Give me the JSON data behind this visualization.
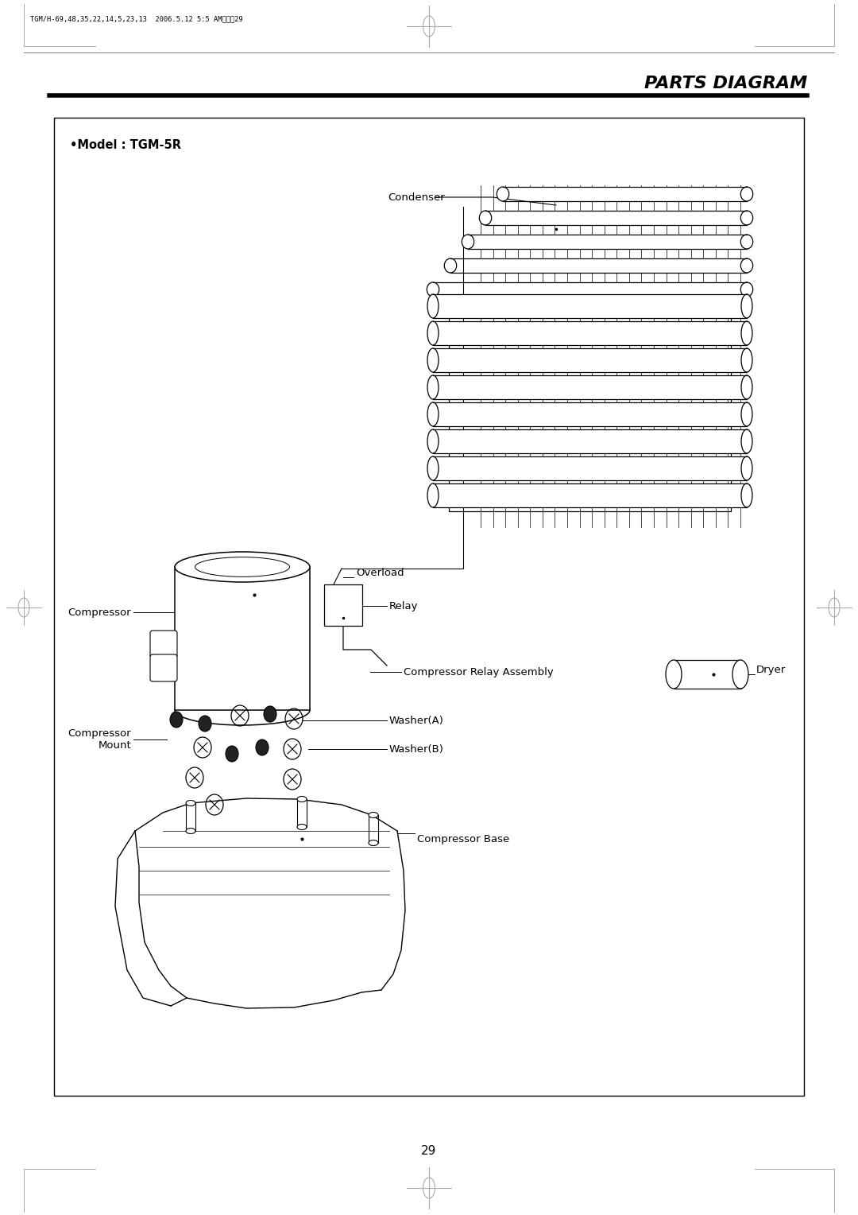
{
  "bg_color": "#ffffff",
  "title": "PARTS DIAGRAM",
  "model_label": "•Model : TGM-5R",
  "header_text": "TGM/H-69,48,35,22,14,5,23,13  2006.5.12 5:5 AM페이지29",
  "page_number": "29",
  "labels": {
    "condenser": "Condenser",
    "overload": "Overload",
    "relay": "Relay",
    "compressor": "Compressor",
    "compressor_relay_assembly": "Compressor Relay Assembly",
    "dryer": "Dryer",
    "compressor_mount": "Compressor\nMount",
    "washer_a": "Washer(A)",
    "washer_b": "Washer(B)",
    "compressor_base": "Compressor Base"
  }
}
